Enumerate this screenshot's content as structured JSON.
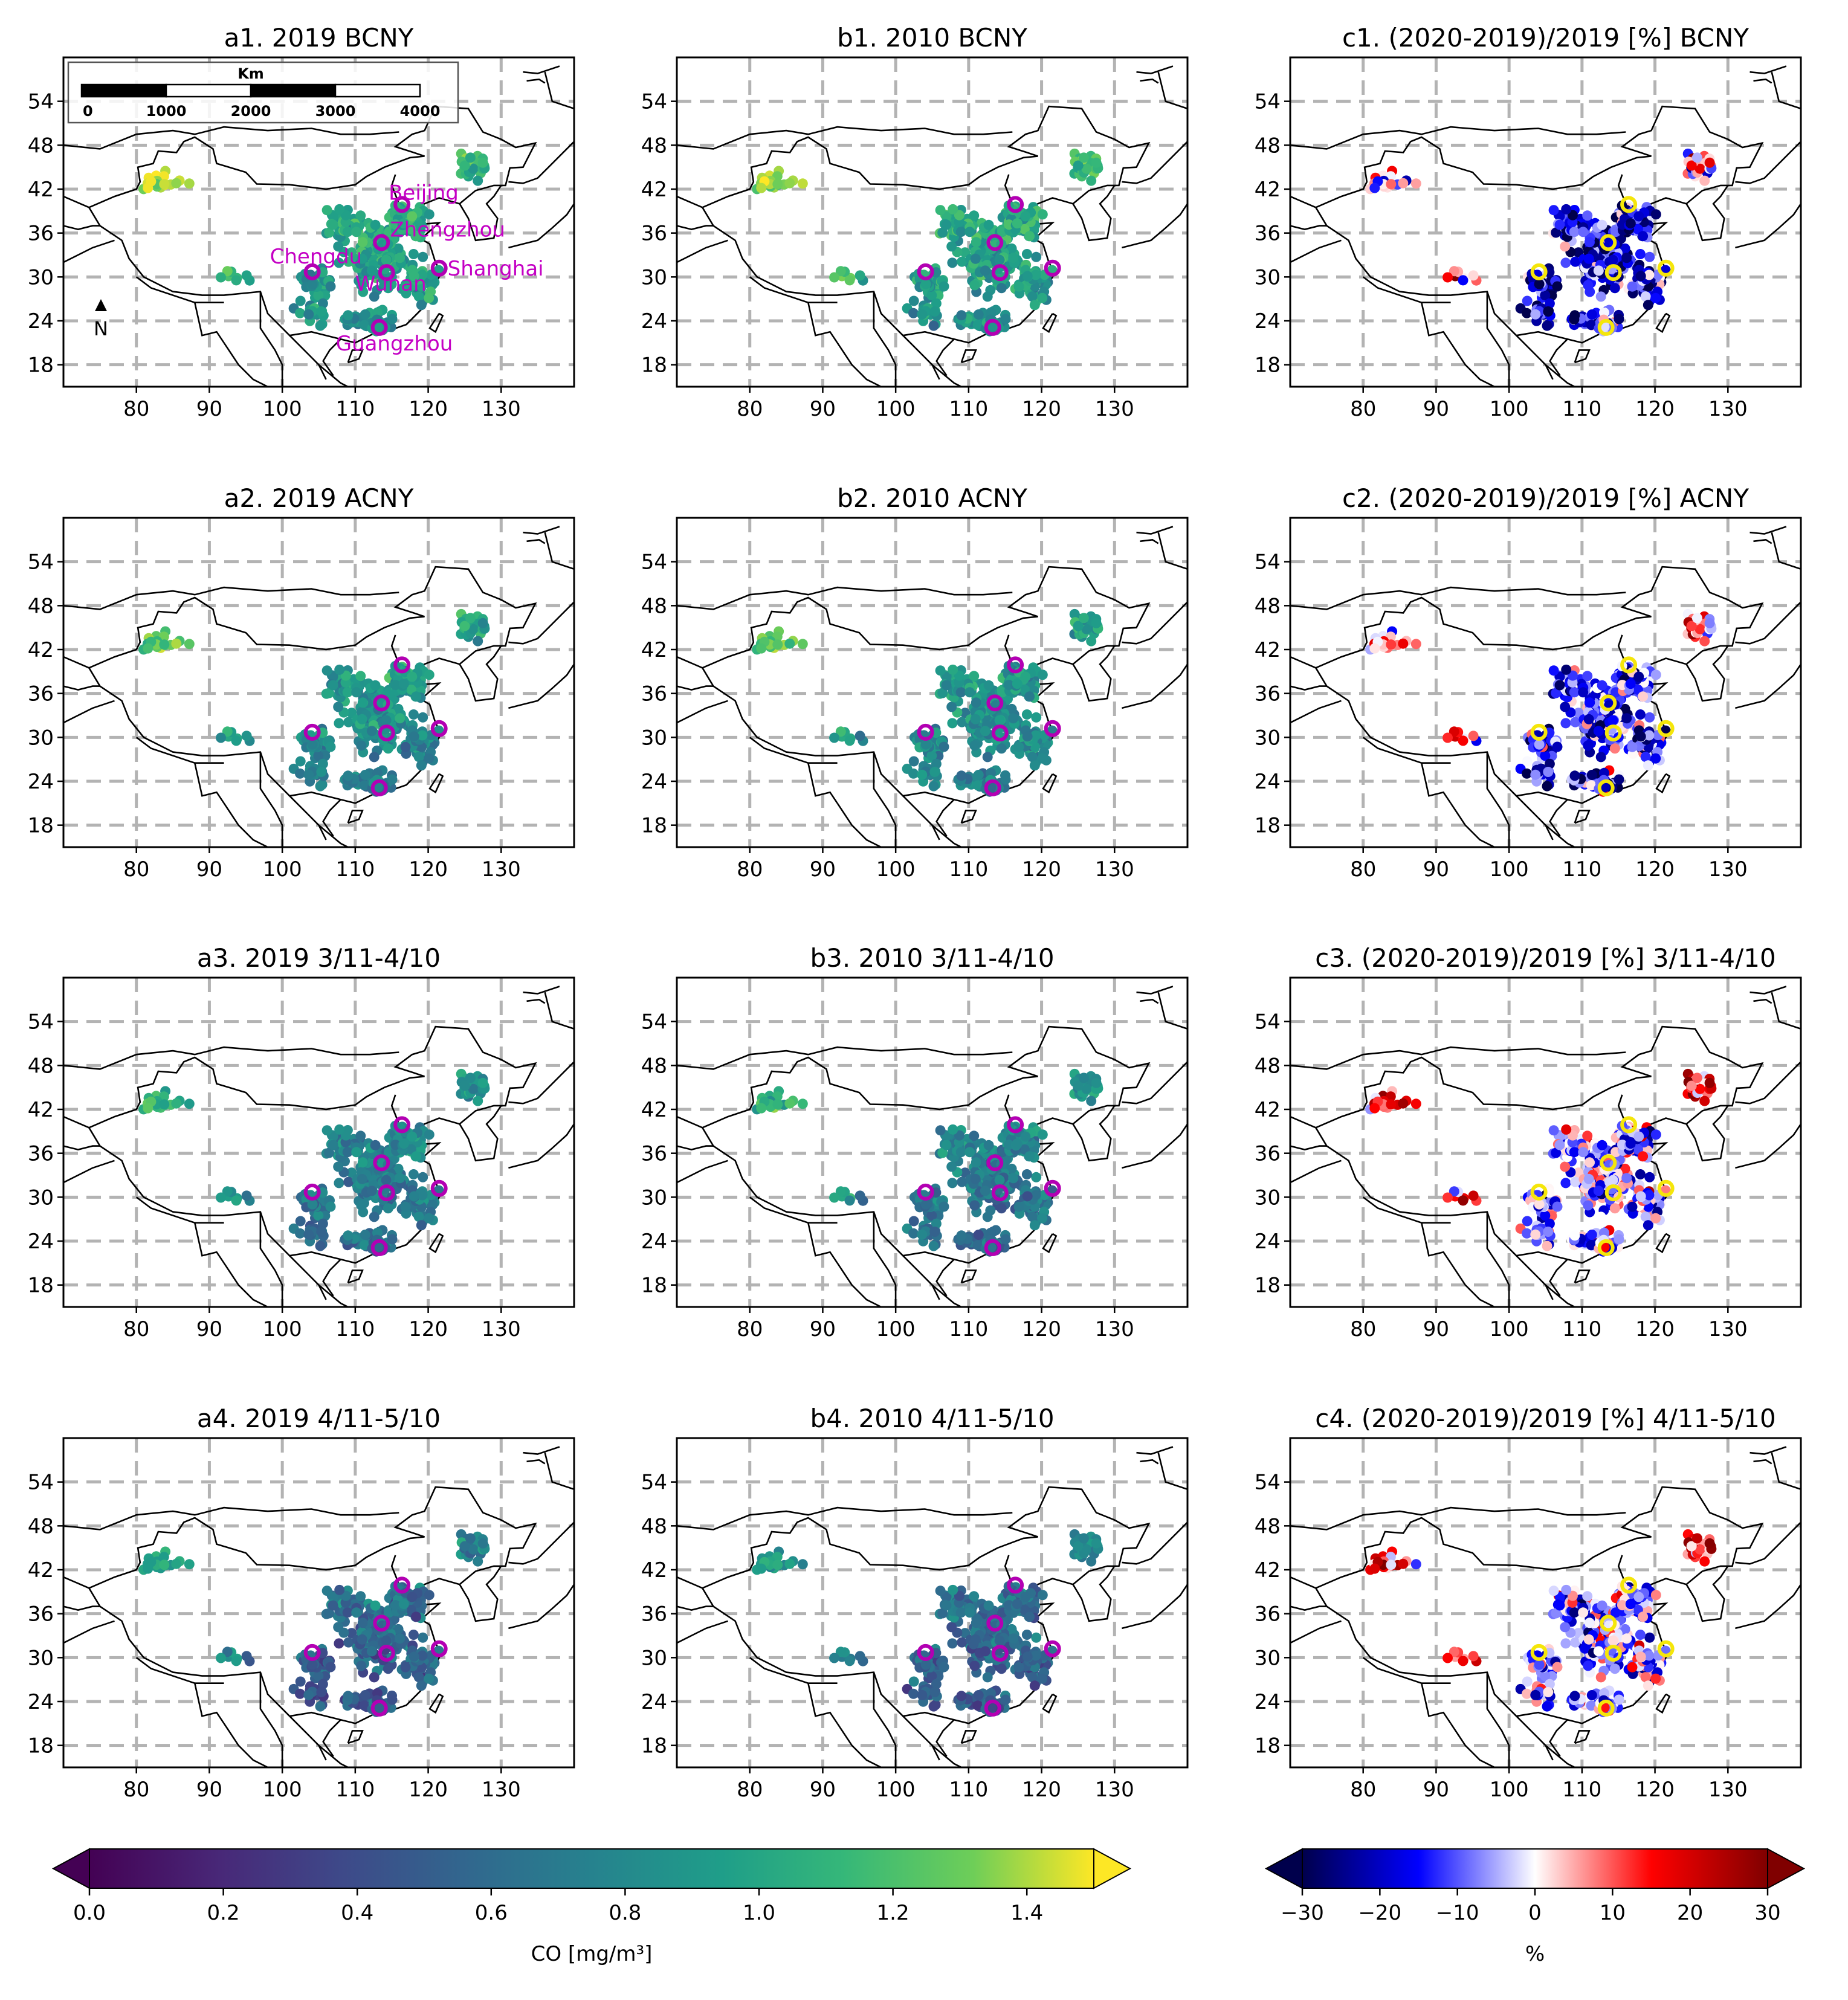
{
  "figure": {
    "panels": [
      {
        "id": "a1",
        "title": "a1. 2019 BCNY",
        "kind": "co",
        "level": 3
      },
      {
        "id": "b1",
        "title": "b1. 2010 BCNY",
        "kind": "co",
        "level": 3
      },
      {
        "id": "c1",
        "title": "c1. (2020-2019)/2019 [%] BCNY",
        "kind": "pct",
        "bias": -0.55
      },
      {
        "id": "a2",
        "title": "a2. 2019 ACNY",
        "kind": "co",
        "level": 2
      },
      {
        "id": "b2",
        "title": "b2. 2010 ACNY",
        "kind": "co",
        "level": 2
      },
      {
        "id": "c2",
        "title": "c2. (2020-2019)/2019 [%] ACNY",
        "kind": "pct",
        "bias": -0.45
      },
      {
        "id": "a3",
        "title": "a3. 2019 3/11-4/10",
        "kind": "co",
        "level": 1
      },
      {
        "id": "b3",
        "title": "b3. 2010 3/11-4/10",
        "kind": "co",
        "level": 1
      },
      {
        "id": "c3",
        "title": "c3. (2020-2019)/2019 [%] 3/11-4/10",
        "kind": "pct",
        "bias": -0.15
      },
      {
        "id": "a4",
        "title": "a4. 2019 4/11-5/10",
        "kind": "co",
        "level": 0
      },
      {
        "id": "b4",
        "title": "b4. 2010 4/11-5/10",
        "kind": "co",
        "level": 0
      },
      {
        "id": "c4",
        "title": "c4. (2020-2019)/2019 [%] 4/11-5/10",
        "kind": "pct",
        "bias": -0.2
      }
    ],
    "lat_ticks": [
      "54",
      "48",
      "42",
      "36",
      "30",
      "24",
      "18"
    ],
    "lon_ticks": [
      "80",
      "90",
      "100",
      "110",
      "120",
      "130"
    ],
    "cities": [
      {
        "name": "Beijing",
        "lon": 116.4,
        "lat": 39.9
      },
      {
        "name": "Zhengzhou",
        "lon": 113.6,
        "lat": 34.7
      },
      {
        "name": "Chengdu",
        "lon": 104.1,
        "lat": 30.7
      },
      {
        "name": "Wuhan",
        "lon": 114.3,
        "lat": 30.6
      },
      {
        "name": "Shanghai",
        "lon": 121.5,
        "lat": 31.2
      },
      {
        "name": "Guangzhou",
        "lon": 113.3,
        "lat": 23.1
      }
    ],
    "scalebar": {
      "title": "Km",
      "labels": [
        "0",
        "1000",
        "2000",
        "3000",
        "4000"
      ]
    },
    "north_label": "N",
    "colorbar_co": {
      "label": "CO [mg/m³]",
      "ticks": [
        "0.0",
        "0.2",
        "0.4",
        "0.6",
        "0.8",
        "1.0",
        "1.2",
        "1.4"
      ],
      "min": 0,
      "max": 1.5
    },
    "colorbar_pct": {
      "label": "%",
      "ticks": [
        "−30",
        "−20",
        "−10",
        "0",
        "10",
        "20",
        "30"
      ],
      "min": -30,
      "max": 30
    },
    "city_marker_color_co": "#b300b3",
    "city_marker_color_pct": "#f5e60a",
    "city_label_color": "#c400c4"
  }
}
